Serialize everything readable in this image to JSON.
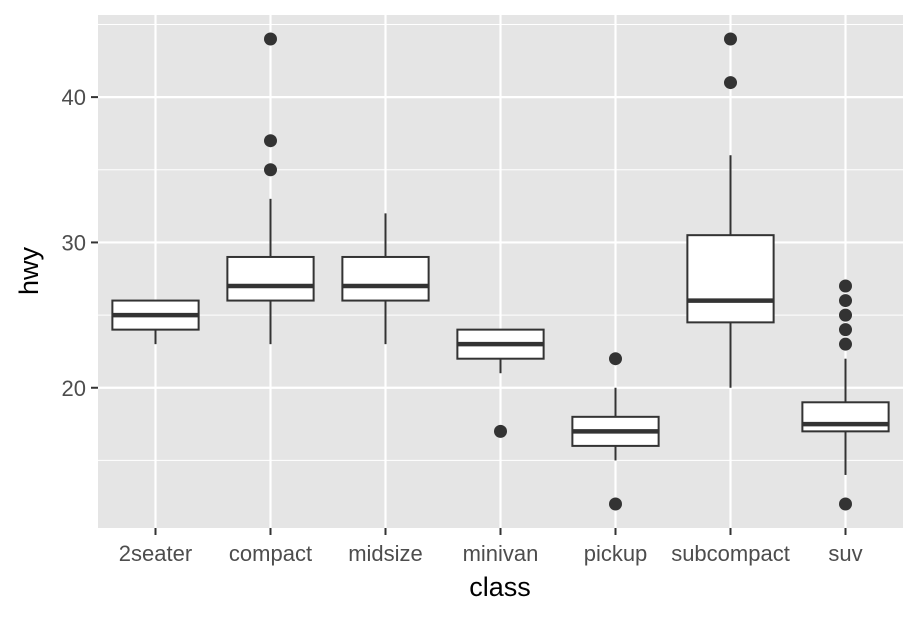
{
  "chart_data": {
    "type": "boxplot",
    "xlabel": "class",
    "ylabel": "hwy",
    "categories": [
      "2seater",
      "compact",
      "midsize",
      "minivan",
      "pickup",
      "subcompact",
      "suv"
    ],
    "yticks": [
      20,
      30,
      40
    ],
    "ylim": [
      10.35,
      45.65
    ],
    "grid": true,
    "legend": "none",
    "boxes": [
      {
        "category": "2seater",
        "lower_whisker": 23,
        "q1": 24,
        "median": 25,
        "q3": 26,
        "upper_whisker": 26,
        "outliers": []
      },
      {
        "category": "compact",
        "lower_whisker": 23,
        "q1": 26,
        "median": 27,
        "q3": 29,
        "upper_whisker": 33,
        "outliers": [
          35,
          37,
          44
        ]
      },
      {
        "category": "midsize",
        "lower_whisker": 23,
        "q1": 26,
        "median": 27,
        "q3": 29,
        "upper_whisker": 32,
        "outliers": []
      },
      {
        "category": "minivan",
        "lower_whisker": 21,
        "q1": 22,
        "median": 23,
        "q3": 24,
        "upper_whisker": 24,
        "outliers": [
          17
        ]
      },
      {
        "category": "pickup",
        "lower_whisker": 15,
        "q1": 16,
        "median": 17,
        "q3": 18,
        "upper_whisker": 20,
        "outliers": [
          12,
          22
        ]
      },
      {
        "category": "subcompact",
        "lower_whisker": 20,
        "q1": 24.5,
        "median": 26,
        "q3": 30.5,
        "upper_whisker": 36,
        "outliers": [
          41,
          44
        ]
      },
      {
        "category": "suv",
        "lower_whisker": 14,
        "q1": 17,
        "median": 17.5,
        "q3": 19,
        "upper_whisker": 22,
        "outliers": [
          12,
          23,
          24,
          25,
          26,
          27
        ]
      }
    ],
    "colors": {
      "panel_background": "#e5e5e5",
      "grid_line": "#ffffff",
      "box_fill": "#ffffff",
      "box_stroke": "#333333",
      "outlier": "#333333",
      "tick_text": "#4d4d4d",
      "title_text": "#000000"
    }
  }
}
